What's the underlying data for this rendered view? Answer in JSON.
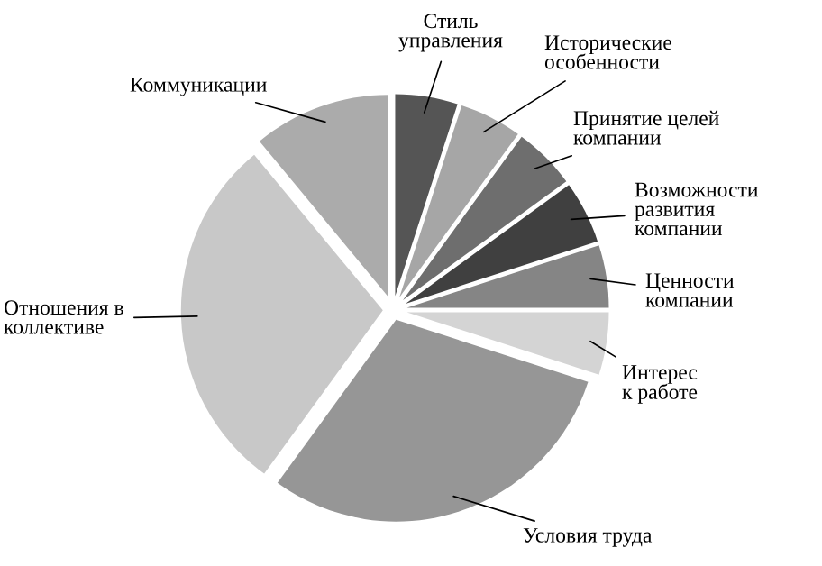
{
  "chart_data": {
    "type": "pie",
    "categories": [
      "Стиль\nуправления",
      "Исторические\nособенности",
      "Принятие целей\nкомпании",
      "Возможности\nразвития\nкомпании",
      "Ценности\nкомпании",
      "Интерес\nк работе",
      "Условия труда",
      "Отношения в\nколлективе",
      "Коммуникации"
    ],
    "values": [
      5,
      5,
      5,
      5,
      5,
      5,
      30,
      29,
      11
    ],
    "colors": [
      "#555555",
      "#a6a6a6",
      "#6e6e6e",
      "#404040",
      "#858585",
      "#d4d4d4",
      "#969696",
      "#c8c8c8",
      "#ababab"
    ]
  }
}
